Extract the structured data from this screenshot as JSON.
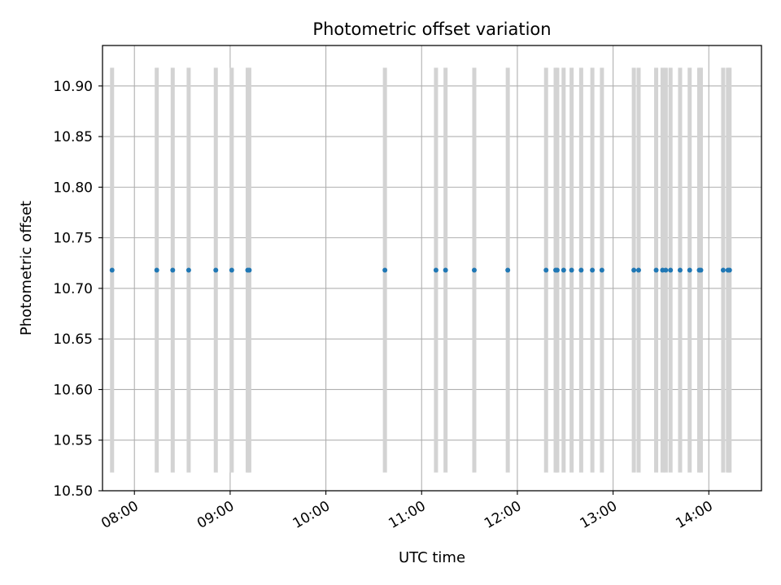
{
  "chart_data": {
    "type": "scatter",
    "title": "Photometric offset variation",
    "xlabel": "UTC time",
    "ylabel": "Photometric offset",
    "x_axis_type": "time",
    "xlim": [
      "07:40",
      "14:33"
    ],
    "ylim": [
      10.5,
      10.94
    ],
    "grid": true,
    "xticks": [
      "08:00",
      "09:00",
      "10:00",
      "11:00",
      "12:00",
      "13:00",
      "14:00"
    ],
    "yticks": [
      "10.50",
      "10.55",
      "10.60",
      "10.65",
      "10.70",
      "10.75",
      "10.80",
      "10.85",
      "10.90"
    ],
    "points": {
      "color": "#1f77b4",
      "y": 10.718,
      "x": [
        "07:46",
        "08:14",
        "08:24",
        "08:34",
        "08:51",
        "09:01",
        "09:11",
        "09:12",
        "10:37",
        "11:09",
        "11:15",
        "11:33",
        "11:54",
        "12:18",
        "12:24",
        "12:25",
        "12:29",
        "12:34",
        "12:40",
        "12:47",
        "12:53",
        "13:13",
        "13:16",
        "13:27",
        "13:31",
        "13:33",
        "13:36",
        "13:42",
        "13:48",
        "13:54",
        "13:55",
        "14:09",
        "14:12",
        "14:13"
      ]
    },
    "bands": {
      "color": "#d3d3d3",
      "y_range": [
        10.518,
        10.918
      ],
      "x": [
        "07:46",
        "08:14",
        "08:24",
        "08:34",
        "08:51",
        "09:01",
        "09:11",
        "09:12",
        "10:37",
        "11:09",
        "11:15",
        "11:33",
        "11:54",
        "12:18",
        "12:24",
        "12:25",
        "12:29",
        "12:34",
        "12:40",
        "12:47",
        "12:53",
        "13:13",
        "13:16",
        "13:27",
        "13:31",
        "13:33",
        "13:36",
        "13:42",
        "13:48",
        "13:54",
        "13:55",
        "14:09",
        "14:12",
        "14:13"
      ]
    }
  }
}
